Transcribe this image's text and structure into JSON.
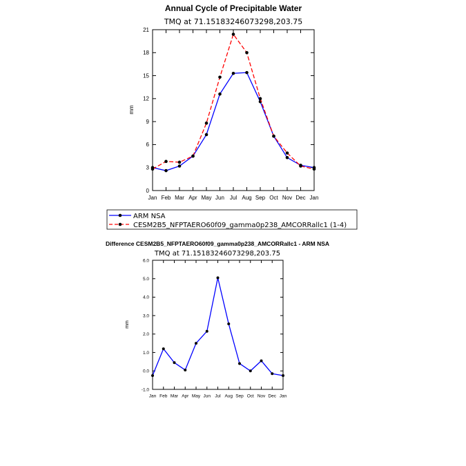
{
  "chart_data": [
    {
      "type": "line",
      "title": "Annual Cycle of Precipitable Water",
      "subtitle": "TMQ at 71.15183246073298,203.75",
      "xlabel": "",
      "ylabel": "mm",
      "categories": [
        "Jan",
        "Feb",
        "Mar",
        "Apr",
        "May",
        "Jun",
        "Jul",
        "Aug",
        "Sep",
        "Oct",
        "Nov",
        "Dec",
        "Jan"
      ],
      "ylim": [
        0,
        21
      ],
      "yticks": [
        "0",
        "3",
        "6",
        "9",
        "12",
        "15",
        "18",
        "21"
      ],
      "grid": false,
      "series": [
        {
          "name": "ARM NSA",
          "color": "#0000ff",
          "dash": "solid",
          "values": [
            3.0,
            2.6,
            3.2,
            4.5,
            7.3,
            12.6,
            15.3,
            15.4,
            11.6,
            7.1,
            4.3,
            3.3,
            3.0
          ]
        },
        {
          "name": "CESM2B5_NFPTAERO60f09_gamma0p238_AMCORRallc1 (1-4)",
          "color": "#ff0000",
          "dash": "dashed",
          "values": [
            2.8,
            3.8,
            3.7,
            4.5,
            8.8,
            14.8,
            20.4,
            18.0,
            12.0,
            7.1,
            4.9,
            3.2,
            2.8
          ]
        }
      ]
    },
    {
      "type": "line",
      "title": "Difference CESM2B5_NFPTAERO60f09_gamma0p238_AMCORRallc1 - ARM NSA",
      "subtitle": "TMQ at 71.15183246073298,203.75",
      "xlabel": "",
      "ylabel": "mm",
      "categories": [
        "Jan",
        "Feb",
        "Mar",
        "Apr",
        "May",
        "Jun",
        "Jul",
        "Aug",
        "Sep",
        "Oct",
        "Nov",
        "Dec",
        "Jan"
      ],
      "ylim": [
        -1.0,
        6.0
      ],
      "yticks": [
        "-1.0",
        "0.0",
        "1.0",
        "2.0",
        "3.0",
        "4.0",
        "5.0",
        "6.0"
      ],
      "grid": false,
      "series": [
        {
          "name": "",
          "color": "#0000ff",
          "dash": "solid",
          "values": [
            -0.25,
            1.2,
            0.45,
            0.05,
            1.5,
            2.15,
            5.05,
            2.55,
            0.4,
            0.0,
            0.55,
            -0.15,
            -0.25
          ]
        }
      ]
    }
  ]
}
